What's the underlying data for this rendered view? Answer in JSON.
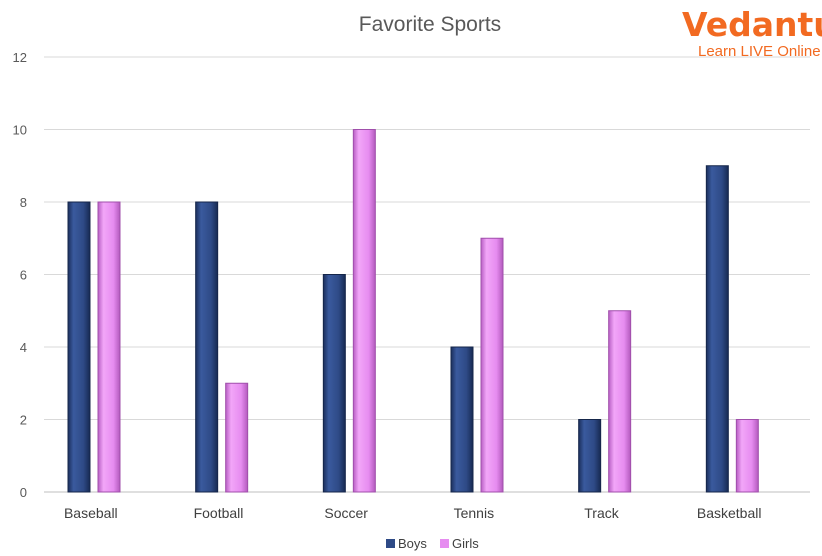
{
  "chart_data": {
    "type": "bar",
    "title": "Favorite Sports",
    "categories": [
      "Baseball",
      "Football",
      "Soccer",
      "Tennis",
      "Track",
      "Basketball"
    ],
    "series": [
      {
        "name": "Boys",
        "values": [
          8,
          8,
          6,
          4,
          2,
          9
        ],
        "color": "#2e4a86"
      },
      {
        "name": "Girls",
        "values": [
          8,
          3,
          10,
          7,
          5,
          2
        ],
        "color": "#e68cf0"
      }
    ],
    "xlabel": "",
    "ylabel": "",
    "ylim": [
      0,
      12
    ],
    "yticks": [
      0,
      2,
      4,
      6,
      8,
      10,
      12
    ],
    "grid": true,
    "legend": "bottom-center"
  },
  "logo": {
    "name": "Vedantu",
    "tagline": "Learn LIVE Online",
    "color": "#f26a21"
  }
}
